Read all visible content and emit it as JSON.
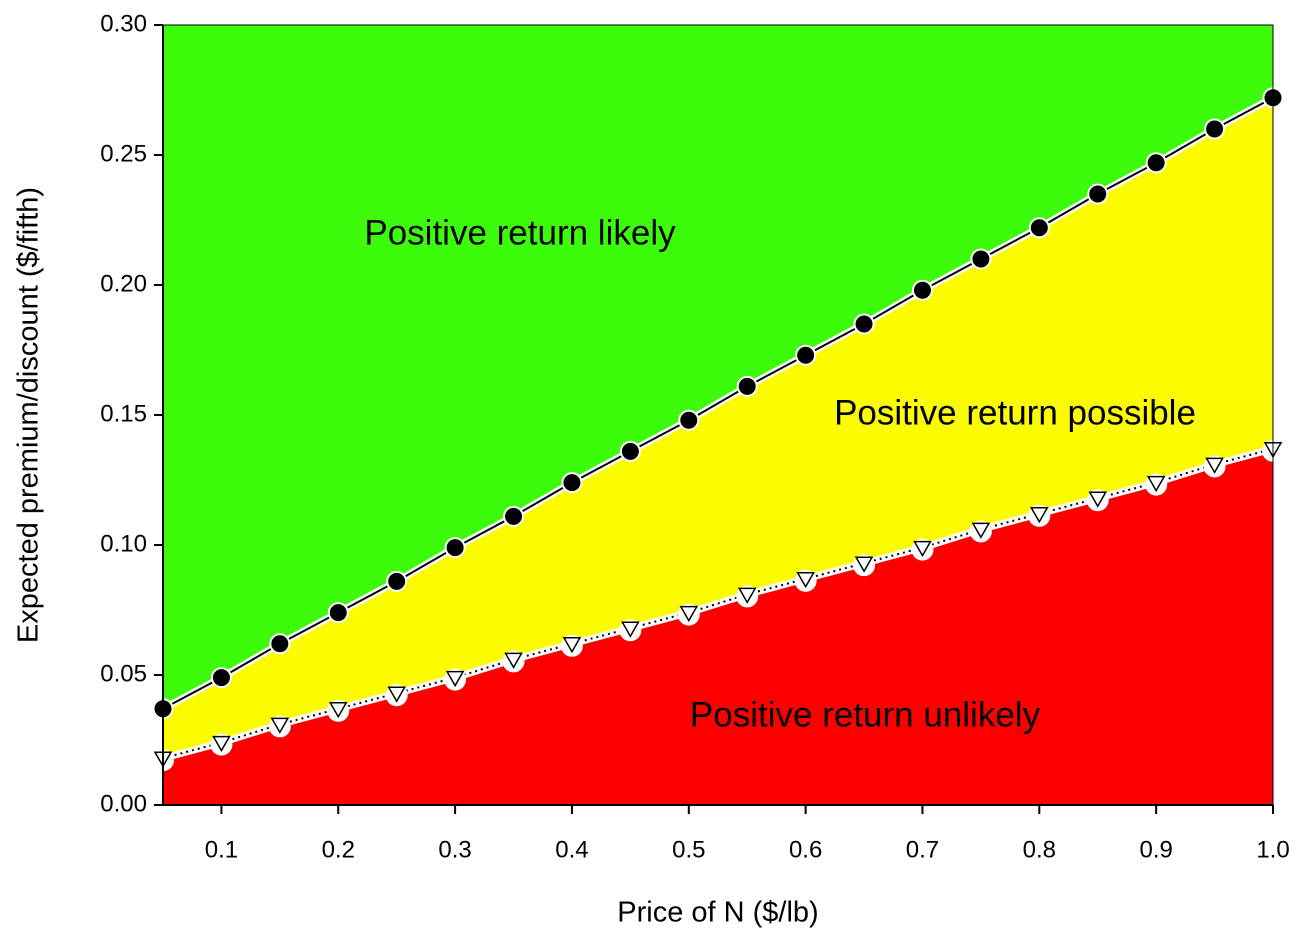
{
  "chart_data": {
    "type": "line",
    "xlabel": "Price of N  ($/lb)",
    "ylabel": "Expected premium/discount ($/fifth)",
    "x": [
      0.05,
      0.1,
      0.15,
      0.2,
      0.25,
      0.3,
      0.35,
      0.4,
      0.45,
      0.5,
      0.55,
      0.6,
      0.65,
      0.7,
      0.75,
      0.8,
      0.85,
      0.9,
      0.95,
      1.0
    ],
    "series": [
      {
        "marker": "circle",
        "color": "#000000",
        "line_style": "solid",
        "values": [
          0.037,
          0.049,
          0.062,
          0.074,
          0.086,
          0.099,
          0.111,
          0.124,
          0.136,
          0.148,
          0.161,
          0.173,
          0.185,
          0.198,
          0.21,
          0.222,
          0.235,
          0.247,
          0.26,
          0.272
        ]
      },
      {
        "marker": "triangle-down",
        "color": "#ffffff",
        "line_style": "dotted",
        "values": [
          0.018,
          0.024,
          0.031,
          0.037,
          0.043,
          0.049,
          0.056,
          0.062,
          0.068,
          0.074,
          0.081,
          0.087,
          0.093,
          0.099,
          0.106,
          0.112,
          0.118,
          0.124,
          0.131,
          0.137
        ]
      }
    ],
    "regions": [
      {
        "label": "Positive return likely",
        "color": "#3cfc0c"
      },
      {
        "label": "Positive return possible",
        "color": "#fcfc00"
      },
      {
        "label": "Positive return unlikely",
        "color": "#fc0000"
      }
    ],
    "xlim": [
      0.05,
      1.0
    ],
    "xticks": [
      0.1,
      0.2,
      0.3,
      0.4,
      0.5,
      0.6,
      0.7,
      0.8,
      0.9,
      {
        "value": 1.0,
        "label": "1.0"
      }
    ],
    "ylim": [
      0,
      0.3
    ],
    "yticks": [
      {
        "value": 0,
        "label": "0.00"
      },
      0.05,
      {
        "value": 0.1,
        "label": "0.10"
      },
      0.15,
      {
        "value": 0.2,
        "label": "0.20"
      },
      0.25,
      {
        "value": 0.3,
        "label": "0.30"
      }
    ]
  }
}
